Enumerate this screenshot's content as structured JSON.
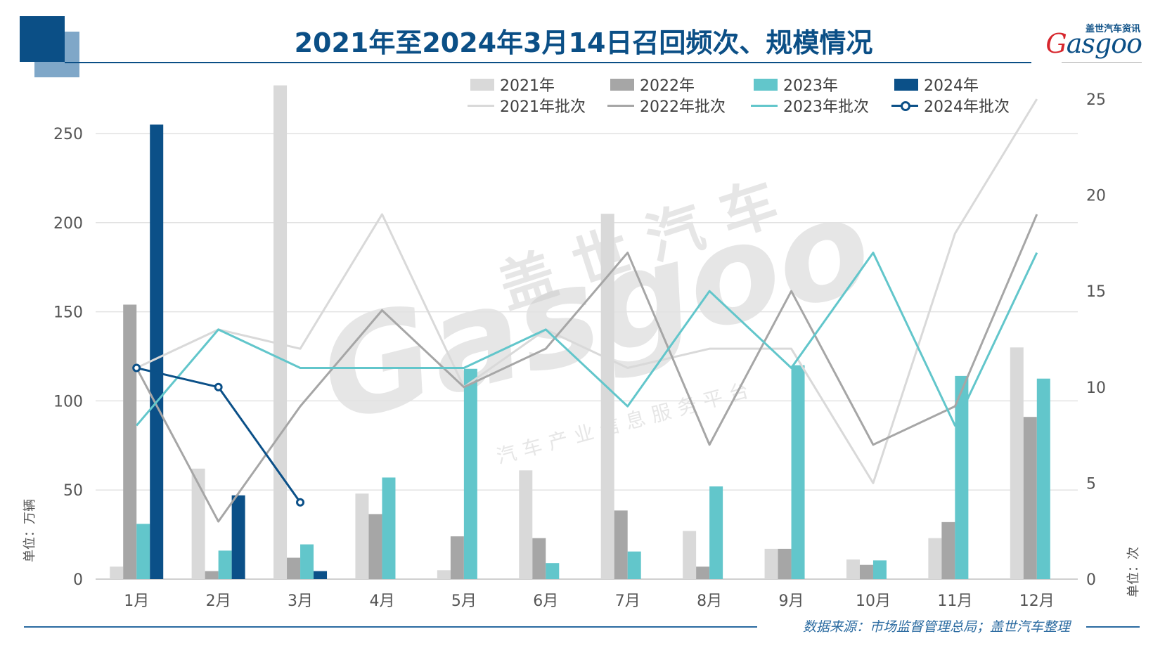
{
  "title": "2021年至2024年3月14日召回频次、规模情况",
  "logo": {
    "cn": "盖世汽车资讯",
    "en": "Gasgoo"
  },
  "watermark": {
    "cn": "盖世汽车",
    "en": "Gasgoo",
    "sub": "汽车产业信息服务平台"
  },
  "source": "数据来源：市场监督管理总局；盖世汽车整理",
  "colors": {
    "c2021": "#d9d9d9",
    "c2022": "#a6a6a6",
    "c2023": "#62c6cb",
    "c2024": "#0b5088",
    "title": "#0b4f86"
  },
  "chart_data": {
    "type": "bar+line",
    "title": "2021年至2024年3月14日召回频次、规模情况",
    "categories": [
      "1月",
      "2月",
      "3月",
      "4月",
      "5月",
      "6月",
      "7月",
      "8月",
      "9月",
      "10月",
      "11月",
      "12月"
    ],
    "ylabel_left": "单位：万辆",
    "ylabel_right": "单位：次",
    "ylim_left": [
      0,
      250
    ],
    "yticks_left": [
      0,
      50,
      100,
      150,
      200,
      250
    ],
    "ylim_right": [
      0,
      25
    ],
    "yticks_right": [
      0,
      5,
      10,
      15,
      20,
      25
    ],
    "grid": true,
    "legend_position": "top-right",
    "bar_series": [
      {
        "name": "2021年",
        "color": "#d9d9d9",
        "values": [
          7,
          62,
          277,
          48,
          5,
          61,
          205,
          27,
          17,
          11,
          23,
          130
        ]
      },
      {
        "name": "2022年",
        "color": "#a6a6a6",
        "values": [
          154,
          4.5,
          12,
          36.5,
          24,
          23,
          38.5,
          7,
          17,
          8,
          32,
          91
        ]
      },
      {
        "name": "2023年",
        "color": "#62c6cb",
        "values": [
          31,
          16,
          19.5,
          57,
          118,
          9,
          15.5,
          52,
          120,
          10.5,
          114,
          112.5
        ]
      },
      {
        "name": "2024年",
        "color": "#0b5088",
        "values": [
          255,
          47,
          4.5,
          null,
          null,
          null,
          null,
          null,
          null,
          null,
          null,
          null
        ]
      }
    ],
    "line_series": [
      {
        "name": "2021年批次",
        "color": "#d9d9d9",
        "values": [
          11,
          13,
          12,
          19,
          10,
          13,
          11,
          12,
          12,
          5,
          18,
          25
        ]
      },
      {
        "name": "2022年批次",
        "color": "#a6a6a6",
        "values": [
          11,
          3,
          9,
          14,
          10,
          12,
          17,
          7,
          15,
          7,
          9,
          19
        ]
      },
      {
        "name": "2023年批次",
        "color": "#62c6cb",
        "values": [
          8,
          13,
          11,
          11,
          11,
          13,
          9,
          15,
          11,
          17,
          8,
          17
        ]
      },
      {
        "name": "2024年批次",
        "color": "#0b5088",
        "marker": "circle",
        "values": [
          11,
          10,
          4,
          null,
          null,
          null,
          null,
          null,
          null,
          null,
          null,
          null
        ]
      }
    ]
  }
}
